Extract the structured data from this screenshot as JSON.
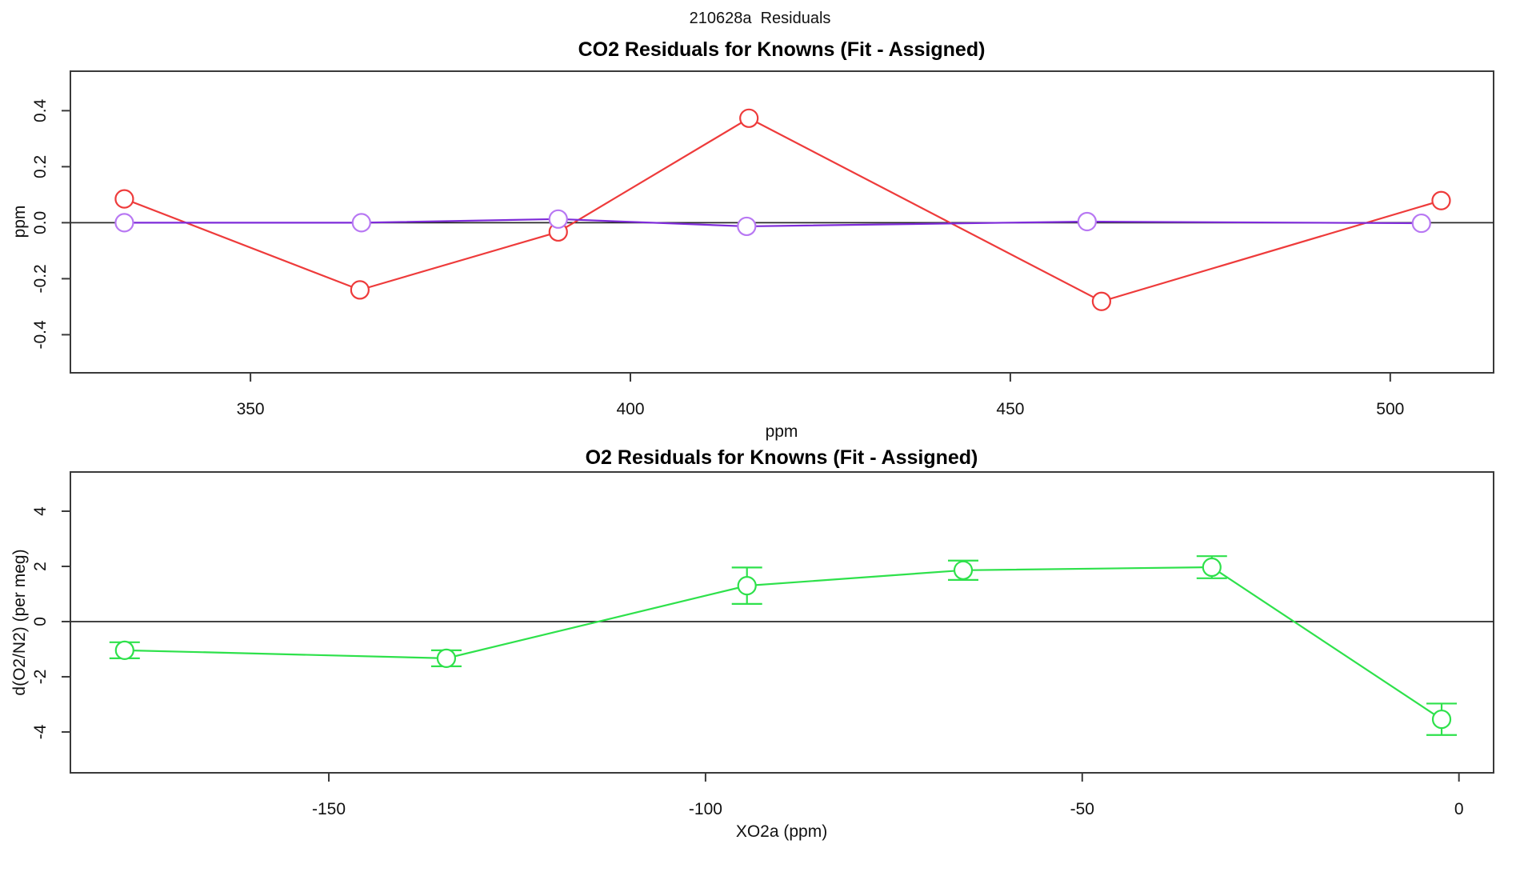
{
  "page_title": "210628a  Residuals",
  "colors": {
    "red": "#ee3b3b",
    "purple_line": "#7e2bd9",
    "purple_marker": "#b878f3",
    "green": "#2ee14b",
    "axis": "#3a3a3a",
    "zero_line": "#2a2a2a",
    "text": "#111111"
  },
  "chart_data": [
    {
      "type": "line",
      "title": "CO2 Residuals for Knowns (Fit - Assigned)",
      "xlabel": "ppm",
      "ylabel": "ppm",
      "xlim": [
        326.3,
        513.6
      ],
      "ylim": [
        -0.536,
        0.541
      ],
      "xticks": [
        350,
        400,
        450,
        500
      ],
      "xtick_labels": [
        "350",
        "400",
        "450",
        "500"
      ],
      "yticks": [
        -0.4,
        -0.2,
        0.0,
        0.2,
        0.4
      ],
      "ytick_labels": [
        "-0.4",
        "-0.2",
        "0.0",
        "0.2",
        "0.4"
      ],
      "zero_line": true,
      "grid": false,
      "legend": "none",
      "series": [
        {
          "name": "co2-residual-red",
          "color_key": "red",
          "marker": "open-circle",
          "x": [
            333.4,
            364.4,
            390.5,
            415.6,
            462.0,
            506.7
          ],
          "y": [
            0.085,
            -0.24,
            -0.033,
            0.373,
            -0.281,
            0.079
          ]
        },
        {
          "name": "co2-residual-purple",
          "color_key": "purple_line",
          "marker_color_key": "purple_marker",
          "marker": "open-circle",
          "x": [
            333.4,
            364.6,
            390.5,
            415.3,
            460.1,
            504.1
          ],
          "y": [
            0.0,
            0.0,
            0.013,
            -0.013,
            0.004,
            -0.002
          ]
        }
      ]
    },
    {
      "type": "line",
      "title": "O2 Residuals for Knowns (Fit - Assigned)",
      "xlabel": "XO2a (ppm)",
      "ylabel": "d(O2/N2) (per meg)",
      "xlim": [
        -184.3,
        4.6
      ],
      "ylim": [
        -5.48,
        5.42
      ],
      "xticks": [
        -150,
        -100,
        -50,
        0
      ],
      "xtick_labels": [
        "-150",
        "-100",
        "-50",
        "0"
      ],
      "yticks": [
        -4,
        -2,
        0,
        2,
        4
      ],
      "ytick_labels": [
        "-4",
        "-2",
        "0",
        "2",
        "4"
      ],
      "zero_line": true,
      "grid": false,
      "legend": "none",
      "series": [
        {
          "name": "o2-residual-green",
          "color_key": "green",
          "marker": "open-circle",
          "x": [
            -177.1,
            -134.4,
            -94.5,
            -65.8,
            -32.8,
            -2.3
          ],
          "y": [
            -1.04,
            -1.33,
            1.3,
            1.86,
            1.97,
            -3.54
          ],
          "yerr": [
            0.29,
            0.29,
            0.66,
            0.35,
            0.4,
            0.57
          ]
        }
      ]
    }
  ]
}
